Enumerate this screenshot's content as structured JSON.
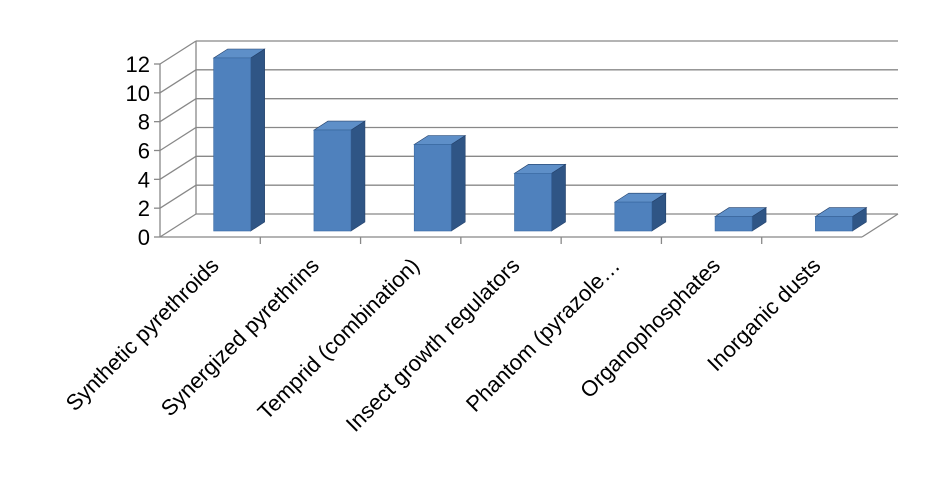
{
  "chart_data": {
    "type": "bar",
    "style": "3d-column",
    "title": "",
    "xlabel": "",
    "ylabel": "",
    "categories": [
      "Synthetic pyrethroids",
      "Synergized pyrethrins",
      "Temprid (combination)",
      "Insect growth regulators",
      "Phantom (pyrazole…",
      "Organophosphates",
      "Inorganic dusts"
    ],
    "values": [
      12,
      7,
      6,
      4,
      2,
      1,
      1
    ],
    "ylim": [
      0,
      12
    ],
    "yticks": [
      "0",
      "2",
      "4",
      "6",
      "8",
      "10",
      "12"
    ],
    "grid": true,
    "legend": "none",
    "colors": {
      "bar_front": "#4F81BD",
      "bar_top": "#5E8FC8",
      "bar_side": "#2F5585",
      "grid": "#888888"
    }
  }
}
